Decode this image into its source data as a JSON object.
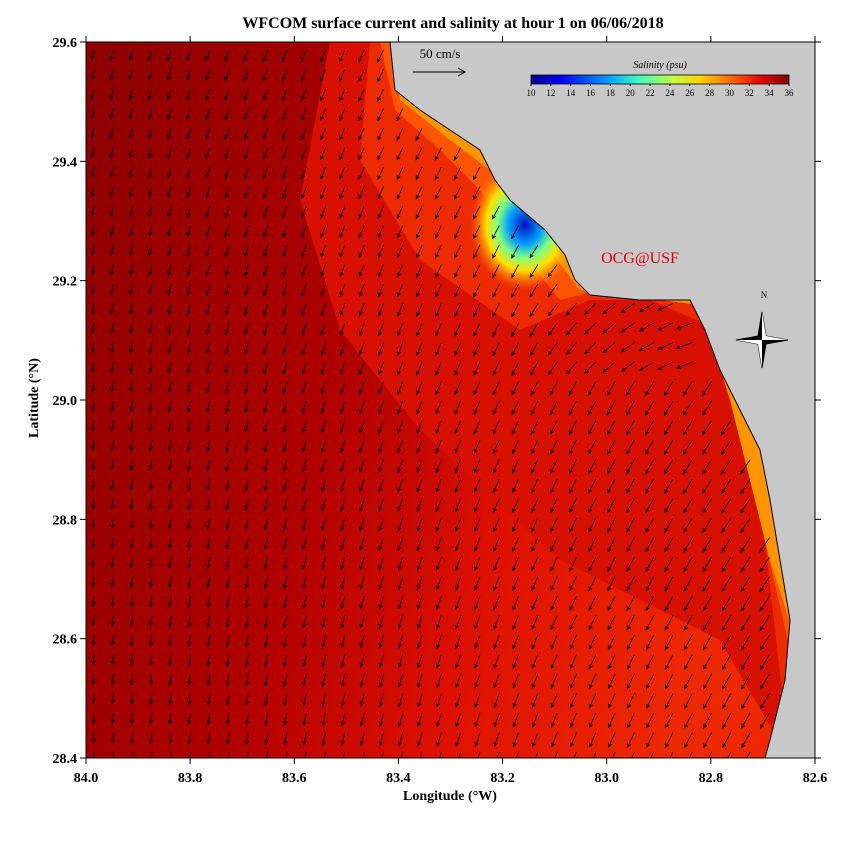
{
  "title": "WFCOM surface current and salinity at hour 1 on 06/06/2018",
  "x_axis": {
    "label": "Longitude (°W)",
    "lim": [
      84,
      82.6
    ],
    "ticks": [
      {
        "value": 84,
        "label": "84.0"
      },
      83.8,
      83.6,
      83.4,
      83.2,
      {
        "value": 83,
        "label": "83.0"
      },
      82.8,
      82.6
    ]
  },
  "y_axis": {
    "label": "Latitude (°N)",
    "lim": [
      28.4,
      29.6
    ],
    "ticks": [
      28.4,
      28.6,
      28.8,
      {
        "value": 29,
        "label": "29.0"
      },
      29.2,
      29.4,
      29.6
    ]
  },
  "colorbar": {
    "title": "Salinity (psu)",
    "lim": [
      10,
      36
    ],
    "ticks": [
      10,
      12,
      14,
      16,
      18,
      20,
      22,
      24,
      26,
      28,
      30,
      32,
      34,
      36
    ]
  },
  "scale_label": "50 cm/s",
  "credit": "OCG@USF",
  "compass_label": "N"
}
